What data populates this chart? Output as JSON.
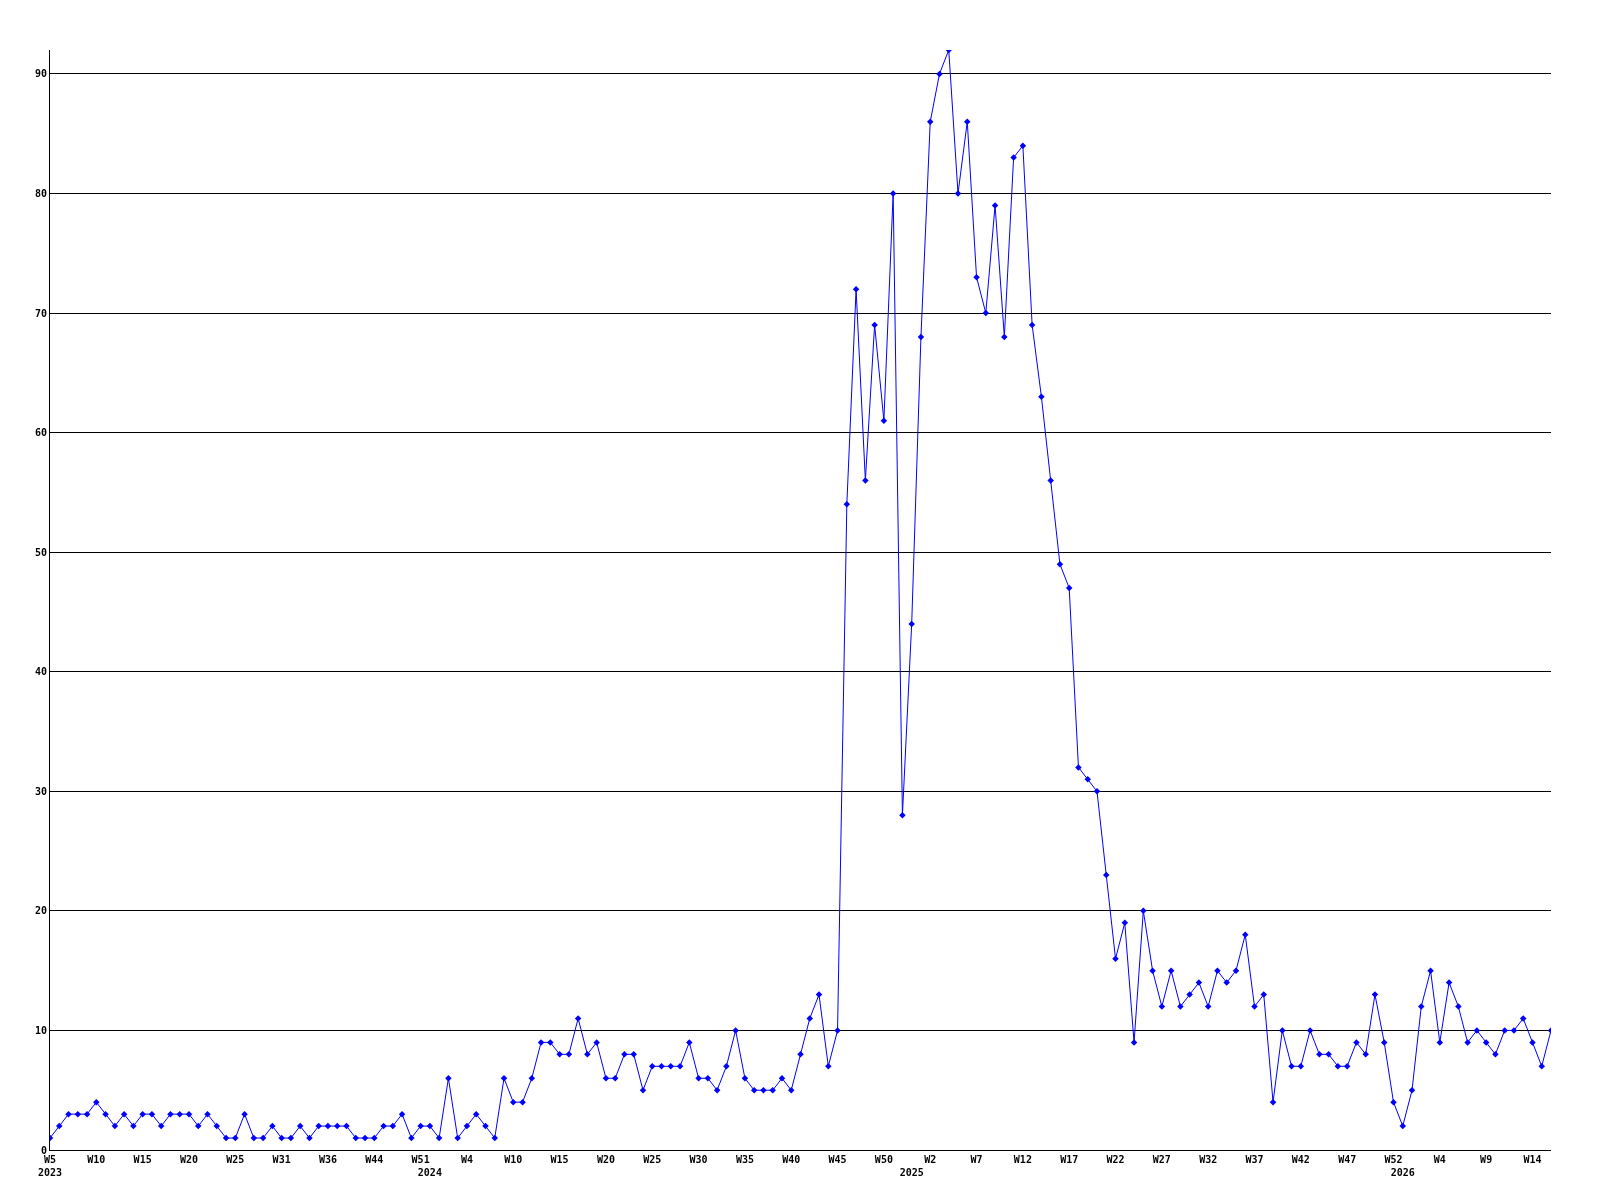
{
  "chart_data": {
    "type": "line",
    "categories": [
      "W5\n2023",
      null,
      null,
      null,
      null,
      "W10",
      null,
      null,
      null,
      null,
      "W15",
      null,
      null,
      null,
      null,
      "W20",
      null,
      null,
      null,
      null,
      "W25",
      null,
      null,
      null,
      null,
      "W31",
      null,
      null,
      null,
      null,
      "W36",
      null,
      null,
      null,
      null,
      "W44",
      null,
      null,
      null,
      null,
      "W51",
      "\n2024",
      null,
      null,
      null,
      "W4",
      null,
      null,
      null,
      null,
      "W10",
      null,
      null,
      null,
      null,
      "W15",
      null,
      null,
      null,
      null,
      "W20",
      null,
      null,
      null,
      null,
      "W25",
      null,
      null,
      null,
      null,
      "W30",
      null,
      null,
      null,
      null,
      "W35",
      null,
      null,
      null,
      null,
      "W40",
      null,
      null,
      null,
      null,
      "W45",
      null,
      null,
      null,
      null,
      "W50",
      null,
      null,
      "\n2025",
      null,
      "W2",
      null,
      null,
      null,
      null,
      "W7",
      null,
      null,
      null,
      null,
      "W12",
      null,
      null,
      null,
      null,
      "W17",
      null,
      null,
      null,
      null,
      "W22",
      null,
      null,
      null,
      null,
      "W27",
      null,
      null,
      null,
      null,
      "W32",
      null,
      null,
      null,
      null,
      "W37",
      null,
      null,
      null,
      null,
      "W42",
      null,
      null,
      null,
      null,
      "W47",
      null,
      null,
      null,
      null,
      "W52",
      "\n2026",
      null,
      null,
      null,
      "W4",
      null,
      null,
      null,
      null,
      "W9",
      null,
      null,
      null,
      null,
      "W14",
      null,
      null
    ],
    "series": [
      {
        "color": "#0000ff",
        "values": [
          1,
          2,
          3,
          3,
          3,
          4,
          3,
          2,
          3,
          2,
          3,
          3,
          2,
          3,
          3,
          3,
          2,
          3,
          2,
          1,
          1,
          3,
          1,
          1,
          2,
          1,
          1,
          2,
          1,
          2,
          2,
          2,
          2,
          1,
          1,
          1,
          2,
          2,
          3,
          1,
          2,
          2,
          1,
          6,
          1,
          2,
          3,
          2,
          1,
          6,
          4,
          4,
          6,
          9,
          9,
          8,
          8,
          11,
          8,
          9,
          6,
          6,
          8,
          8,
          5,
          7,
          7,
          7,
          7,
          9,
          6,
          6,
          5,
          7,
          10,
          6,
          5,
          5,
          5,
          6,
          5,
          8,
          11,
          13,
          7,
          10,
          54,
          72,
          56,
          69,
          61,
          80,
          28,
          44,
          68,
          86,
          90,
          92,
          80,
          86,
          73,
          70,
          79,
          68,
          83,
          84,
          69,
          63,
          56,
          49,
          47,
          32,
          31,
          30,
          23,
          16,
          19,
          9,
          20,
          15,
          12,
          15,
          12,
          13,
          14,
          12,
          15,
          14,
          15,
          18,
          12,
          13,
          4,
          10,
          7,
          7,
          10,
          8,
          8,
          7,
          7,
          9,
          8,
          13,
          9,
          4,
          2,
          5,
          12,
          15,
          9,
          14,
          12,
          9,
          10,
          9,
          8,
          10,
          10,
          11,
          9,
          7,
          10
        ]
      }
    ],
    "ylim": [
      0,
      92
    ],
    "yticks": [
      0,
      10,
      20,
      30,
      40,
      50,
      60,
      70,
      80,
      90
    ],
    "grid": "y",
    "marker": "diamond",
    "line_style": "solid"
  }
}
